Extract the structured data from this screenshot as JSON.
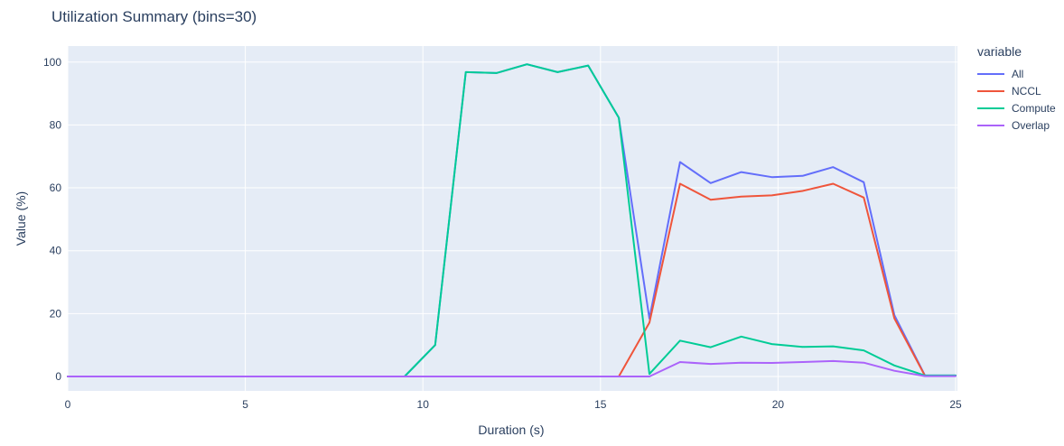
{
  "title": "Utilization Summary (bins=30)",
  "legend": {
    "title": "variable"
  },
  "chart_data": {
    "type": "line",
    "title": "Utilization Summary (bins=30)",
    "xlabel": "Duration (s)",
    "ylabel": "Value (%)",
    "xlim": [
      0,
      25
    ],
    "ylim": [
      -4.6,
      105.1
    ],
    "xticks": [
      0,
      5,
      10,
      15,
      20,
      25
    ],
    "yticks": [
      0,
      20,
      40,
      60,
      80,
      100
    ],
    "grid": true,
    "legend_position": "right",
    "plot_bg": "#E5ECF6",
    "grid_color": "#FFFFFF",
    "text_color": "#2a3f5f",
    "x": [
      0,
      0.862,
      1.724,
      2.586,
      3.448,
      4.31,
      5.172,
      6.034,
      6.897,
      7.759,
      8.621,
      9.483,
      10.345,
      11.207,
      12.069,
      12.931,
      13.793,
      14.655,
      15.517,
      16.379,
      17.241,
      18.103,
      18.966,
      19.828,
      20.69,
      21.552,
      22.414,
      23.276,
      24.138,
      25
    ],
    "series": [
      {
        "name": "All",
        "color": "#636EFA",
        "values": [
          0,
          0,
          0,
          0,
          0,
          0,
          0,
          0,
          0,
          0,
          0,
          0,
          10,
          96.8,
          96.5,
          99.3,
          96.8,
          98.9,
          82.3,
          18.4,
          68.2,
          61.5,
          65,
          63.4,
          63.8,
          66.6,
          61.8,
          19.5,
          0.3,
          0.3
        ]
      },
      {
        "name": "NCCL",
        "color": "#EF553B",
        "values": [
          0,
          0,
          0,
          0,
          0,
          0,
          0,
          0,
          0,
          0,
          0,
          0,
          0,
          0,
          0,
          0,
          0,
          0,
          0,
          17.1,
          61.3,
          56.2,
          57.2,
          57.6,
          59,
          61.3,
          56.9,
          18.5,
          0.2,
          0.2
        ]
      },
      {
        "name": "Compute",
        "color": "#00CC96",
        "values": [
          0,
          0,
          0,
          0,
          0,
          0,
          0,
          0,
          0,
          0,
          0,
          0,
          10,
          96.8,
          96.5,
          99.3,
          96.8,
          98.9,
          82.3,
          0.8,
          11.4,
          9.3,
          12.7,
          10.3,
          9.4,
          9.6,
          8.3,
          3.5,
          0.3,
          0.3
        ]
      },
      {
        "name": "Overlap",
        "color": "#AB63FA",
        "values": [
          0,
          0,
          0,
          0,
          0,
          0,
          0,
          0,
          0,
          0,
          0,
          0,
          0,
          0,
          0,
          0,
          0,
          0,
          0,
          0,
          4.6,
          4,
          4.4,
          4.3,
          4.6,
          4.9,
          4.4,
          1.8,
          0.1,
          0.1
        ]
      }
    ]
  }
}
